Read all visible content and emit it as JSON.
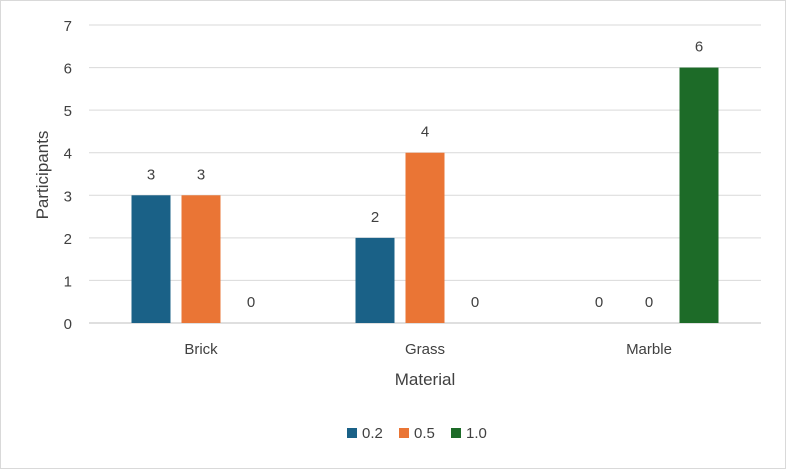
{
  "chart_data": {
    "type": "bar",
    "categories": [
      "Brick",
      "Grass",
      "Marble"
    ],
    "series": [
      {
        "name": "0.2",
        "values": [
          3,
          2,
          0
        ],
        "color": "#1a6187"
      },
      {
        "name": "0.5",
        "values": [
          3,
          4,
          0
        ],
        "color": "#ea7535"
      },
      {
        "name": "1.0",
        "values": [
          0,
          0,
          6
        ],
        "color": "#1d6b28"
      }
    ],
    "xlabel": "Material",
    "ylabel": "Participants",
    "ylim": [
      0,
      7
    ],
    "yticks": [
      0,
      1,
      2,
      3,
      4,
      5,
      6,
      7
    ],
    "grid": true,
    "legend": "bottom",
    "data_labels": true
  }
}
